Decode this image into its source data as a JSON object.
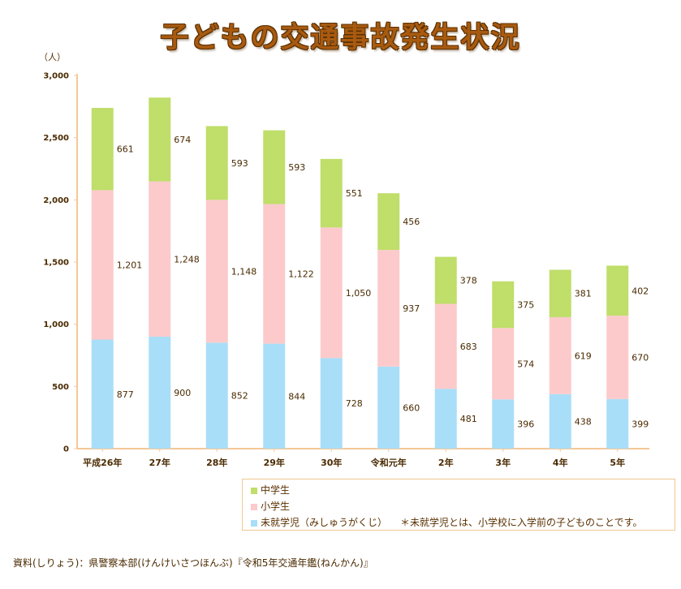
{
  "title": "子どもの交通事故発生状況",
  "chart_data": {
    "type": "bar",
    "stacked": true,
    "unit_label": "（人）",
    "categories": [
      "平成26年",
      "27年",
      "28年",
      "29年",
      "30年",
      "令和元年",
      "2年",
      "3年",
      "4年",
      "5年"
    ],
    "series": [
      {
        "name": "未就学児（みしゅうがくじ）",
        "color": "#a9def8",
        "values": [
          877,
          900,
          852,
          844,
          728,
          660,
          481,
          396,
          438,
          399
        ]
      },
      {
        "name": "小学生",
        "color": "#fccacb",
        "values": [
          1201,
          1248,
          1148,
          1122,
          1050,
          937,
          683,
          574,
          619,
          670
        ]
      },
      {
        "name": "中学生",
        "color": "#bfde6a",
        "values": [
          661,
          674,
          593,
          593,
          551,
          456,
          378,
          375,
          381,
          402
        ]
      }
    ],
    "y_ticks": [
      "0",
      "500",
      "1,000",
      "1,500",
      "2,000",
      "2,500",
      "3,000"
    ],
    "ylim": [
      0,
      3000
    ],
    "legend_order": [
      "中学生",
      "小学生",
      "未就学児（みしゅうがくじ）"
    ],
    "legend_note": "＊未就学児とは、小学校に入学前の子どものことです。",
    "axis_color": "#f5c896"
  },
  "source": "資料(しりょう)：県警察本部(けんけいさつほんぶ)『令和5年交通年鑑(ねんかん)』"
}
